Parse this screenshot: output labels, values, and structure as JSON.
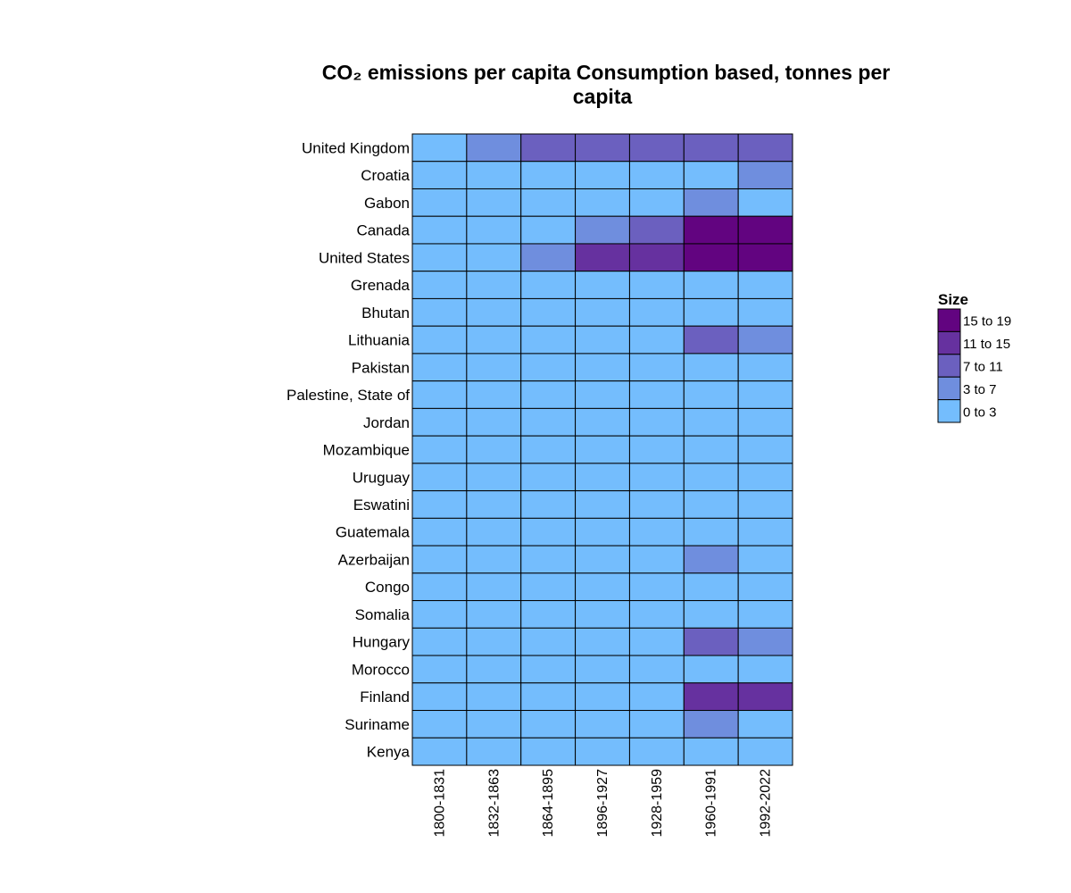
{
  "chart_data": {
    "type": "heatmap",
    "title_line1": "CO₂ emissions per capita Consumption based, tonnes per",
    "title_line2": "capita",
    "rows": [
      "United Kingdom",
      "Croatia",
      "Gabon",
      "Canada",
      "United States",
      "Grenada",
      "Bhutan",
      "Lithuania",
      "Pakistan",
      "Palestine, State of",
      "Jordan",
      "Mozambique",
      "Uruguay",
      "Eswatini",
      "Guatemala",
      "Azerbaijan",
      "Congo",
      "Somalia",
      "Hungary",
      "Morocco",
      "Finland",
      "Suriname",
      "Kenya"
    ],
    "columns": [
      "1800-1831",
      "1832-1863",
      "1864-1895",
      "1896-1927",
      "1928-1959",
      "1960-1991",
      "1992-2022"
    ],
    "bins": [
      {
        "label": "0 to 3",
        "color": "#74bdfd"
      },
      {
        "label": "3 to 7",
        "color": "#6f8ede"
      },
      {
        "label": "7 to 11",
        "color": "#6b60bf"
      },
      {
        "label": "11 to 15",
        "color": "#66319f"
      },
      {
        "label": "15 to 19",
        "color": "#620480"
      }
    ],
    "values": [
      [
        0,
        1,
        2,
        2,
        2,
        2,
        2
      ],
      [
        0,
        0,
        0,
        0,
        0,
        0,
        1
      ],
      [
        0,
        0,
        0,
        0,
        0,
        1,
        0
      ],
      [
        0,
        0,
        0,
        1,
        2,
        4,
        4
      ],
      [
        0,
        0,
        1,
        3,
        3,
        4,
        4
      ],
      [
        0,
        0,
        0,
        0,
        0,
        0,
        0
      ],
      [
        0,
        0,
        0,
        0,
        0,
        0,
        0
      ],
      [
        0,
        0,
        0,
        0,
        0,
        2,
        1
      ],
      [
        0,
        0,
        0,
        0,
        0,
        0,
        0
      ],
      [
        0,
        0,
        0,
        0,
        0,
        0,
        0
      ],
      [
        0,
        0,
        0,
        0,
        0,
        0,
        0
      ],
      [
        0,
        0,
        0,
        0,
        0,
        0,
        0
      ],
      [
        0,
        0,
        0,
        0,
        0,
        0,
        0
      ],
      [
        0,
        0,
        0,
        0,
        0,
        0,
        0
      ],
      [
        0,
        0,
        0,
        0,
        0,
        0,
        0
      ],
      [
        0,
        0,
        0,
        0,
        0,
        1,
        0
      ],
      [
        0,
        0,
        0,
        0,
        0,
        0,
        0
      ],
      [
        0,
        0,
        0,
        0,
        0,
        0,
        0
      ],
      [
        0,
        0,
        0,
        0,
        0,
        2,
        1
      ],
      [
        0,
        0,
        0,
        0,
        0,
        0,
        0
      ],
      [
        0,
        0,
        0,
        0,
        0,
        3,
        3
      ],
      [
        0,
        0,
        0,
        0,
        0,
        1,
        0
      ],
      [
        0,
        0,
        0,
        0,
        0,
        0,
        0
      ]
    ],
    "legend": {
      "title": "Size",
      "placement": "right"
    }
  }
}
